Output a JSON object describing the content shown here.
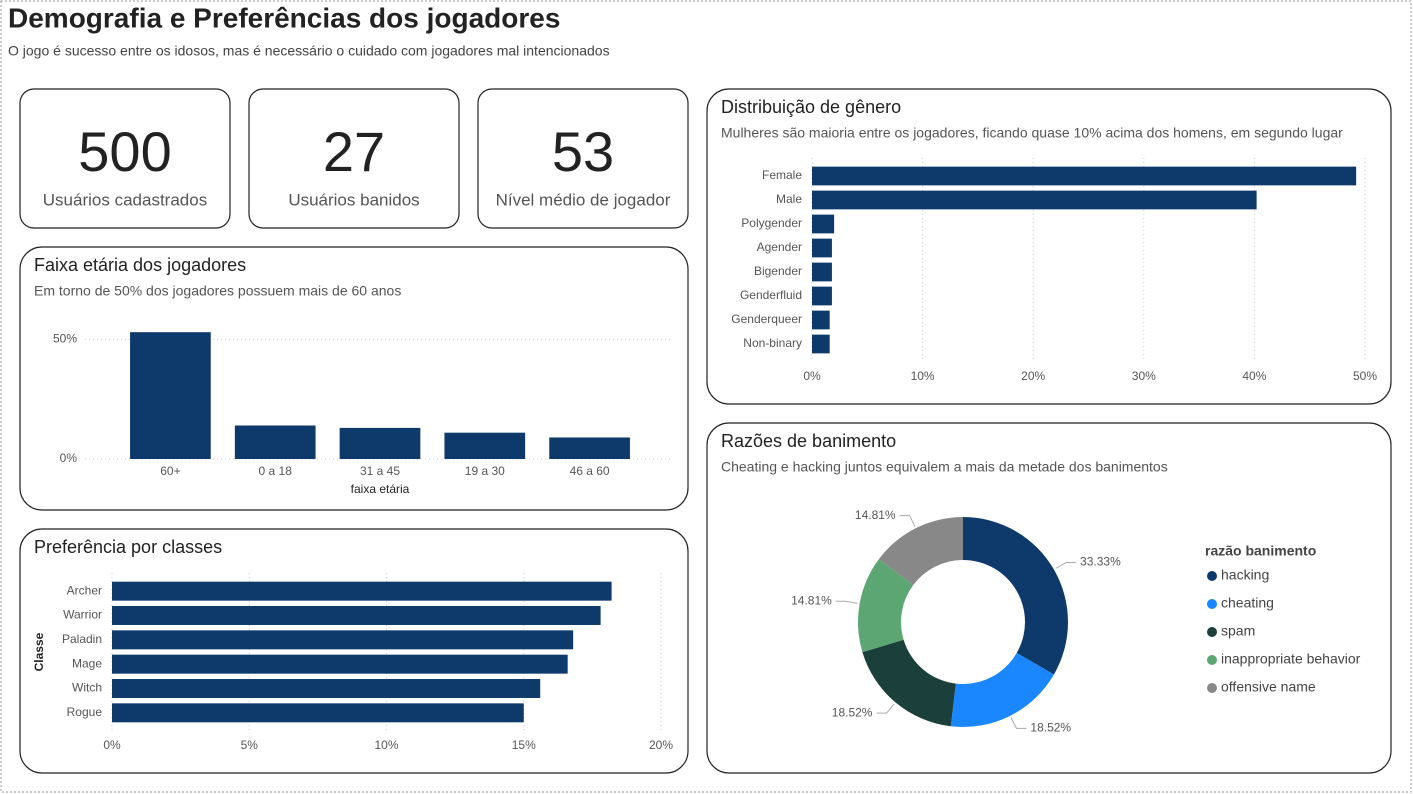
{
  "header": {
    "title": "Demografia e Preferências dos jogadores",
    "subtitle": "O jogo é sucesso entre os idosos, mas é necessário o cuidado com jogadores mal intencionados"
  },
  "cards": [
    {
      "value": 500,
      "label": "Usuários cadastrados"
    },
    {
      "value": 27,
      "label": "Usuários banidos"
    },
    {
      "value": 53,
      "label": "Nível médio de jogador"
    }
  ],
  "chart_data": [
    {
      "type": "bar",
      "horizontal": false,
      "title": "Faixa etária dos jogadores",
      "subtitle": "Em torno de 50% dos jogadores possuem mais de 60 anos",
      "x_label": "faixa etária",
      "categories": [
        "60+",
        "0 a 18",
        "31 a 45",
        "19 a 30",
        "46 a 60"
      ],
      "values": [
        53,
        14,
        13,
        11,
        9
      ],
      "color": "#0e3a6b",
      "ylim": [
        0,
        56
      ],
      "yticks": [
        {
          "value": 0,
          "label": "0%"
        },
        {
          "value": 50,
          "label": "50%"
        }
      ],
      "grid": true
    },
    {
      "type": "bar",
      "horizontal": true,
      "title": "Preferência por classes",
      "y_label": "Classe",
      "categories": [
        "Archer",
        "Warrior",
        "Paladin",
        "Mage",
        "Witch",
        "Rogue"
      ],
      "values": [
        18.2,
        17.8,
        16.8,
        16.6,
        15.6,
        15.0
      ],
      "color": "#0e3a6b",
      "xlim": [
        0,
        20
      ],
      "xticks": [
        {
          "value": 0,
          "label": "0%"
        },
        {
          "value": 5,
          "label": "5%"
        },
        {
          "value": 10,
          "label": "10%"
        },
        {
          "value": 15,
          "label": "15%"
        },
        {
          "value": 20,
          "label": "20%"
        }
      ],
      "grid": true
    },
    {
      "type": "bar",
      "horizontal": true,
      "title": "Distribuição de gênero",
      "subtitle": "Mulheres são maioria entre os jogadores, ficando quase 10% acima dos homens, em segundo lugar",
      "categories": [
        "Female",
        "Male",
        "Polygender",
        "Agender",
        "Bigender",
        "Genderfluid",
        "Genderqueer",
        "Non-binary"
      ],
      "values": [
        49.2,
        40.2,
        2.0,
        1.8,
        1.8,
        1.8,
        1.6,
        1.6
      ],
      "color": "#0e3a6b",
      "xlim": [
        0,
        50
      ],
      "xticks": [
        {
          "value": 0,
          "label": "0%"
        },
        {
          "value": 10,
          "label": "10%"
        },
        {
          "value": 20,
          "label": "20%"
        },
        {
          "value": 30,
          "label": "30%"
        },
        {
          "value": 40,
          "label": "40%"
        },
        {
          "value": 50,
          "label": "50%"
        }
      ],
      "grid": true
    },
    {
      "type": "donut",
      "title": "Razões de banimento",
      "subtitle": "Cheating e hacking juntos equivalem a mais da metade dos banimentos",
      "legend_title": "razão banimento",
      "legend": "right",
      "categories": [
        "hacking",
        "cheating",
        "spam",
        "inappropriate behavior",
        "offensive name"
      ],
      "values": [
        33.33,
        18.52,
        18.52,
        14.81,
        14.81
      ],
      "value_labels": [
        "33.33%",
        "18.52%",
        "18.52%",
        "14.81%",
        "14.81%"
      ],
      "colors": [
        "#0e3a6b",
        "#1a86ff",
        "#1b3f3a",
        "#5ba672",
        "#888888"
      ]
    }
  ]
}
